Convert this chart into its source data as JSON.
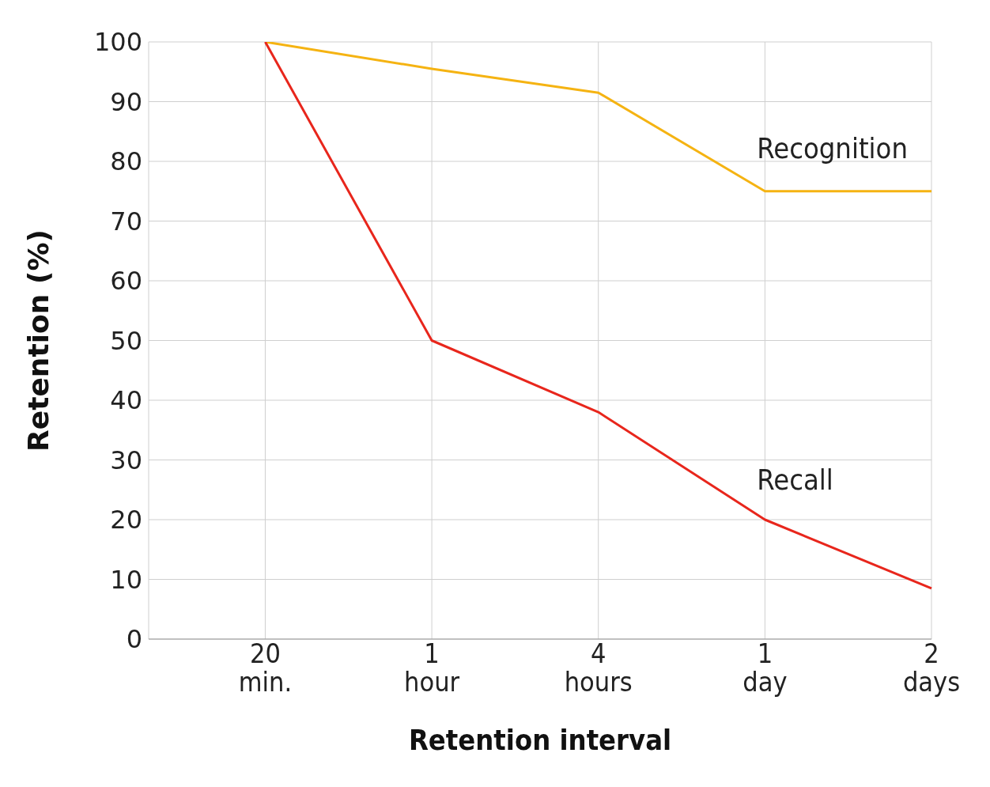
{
  "chart_data": {
    "type": "line",
    "xlabel": "Retention interval",
    "ylabel": "Retention (%)",
    "categories": [
      "20 min.",
      "1 hour",
      "4 hours",
      "1 day",
      "2 days"
    ],
    "series": [
      {
        "name": "Recognition",
        "color": "#f5b312",
        "values": [
          100,
          95.5,
          91.5,
          75,
          75
        ]
      },
      {
        "name": "Recall",
        "color": "#e8261c",
        "values": [
          100,
          50,
          38,
          20,
          8.5
        ]
      }
    ],
    "ylim": [
      0,
      100
    ],
    "yticks": [
      0,
      10,
      20,
      30,
      40,
      50,
      60,
      70,
      80,
      90,
      100
    ],
    "grid": true,
    "legend": false,
    "marker": "none",
    "line_style": "solid"
  }
}
